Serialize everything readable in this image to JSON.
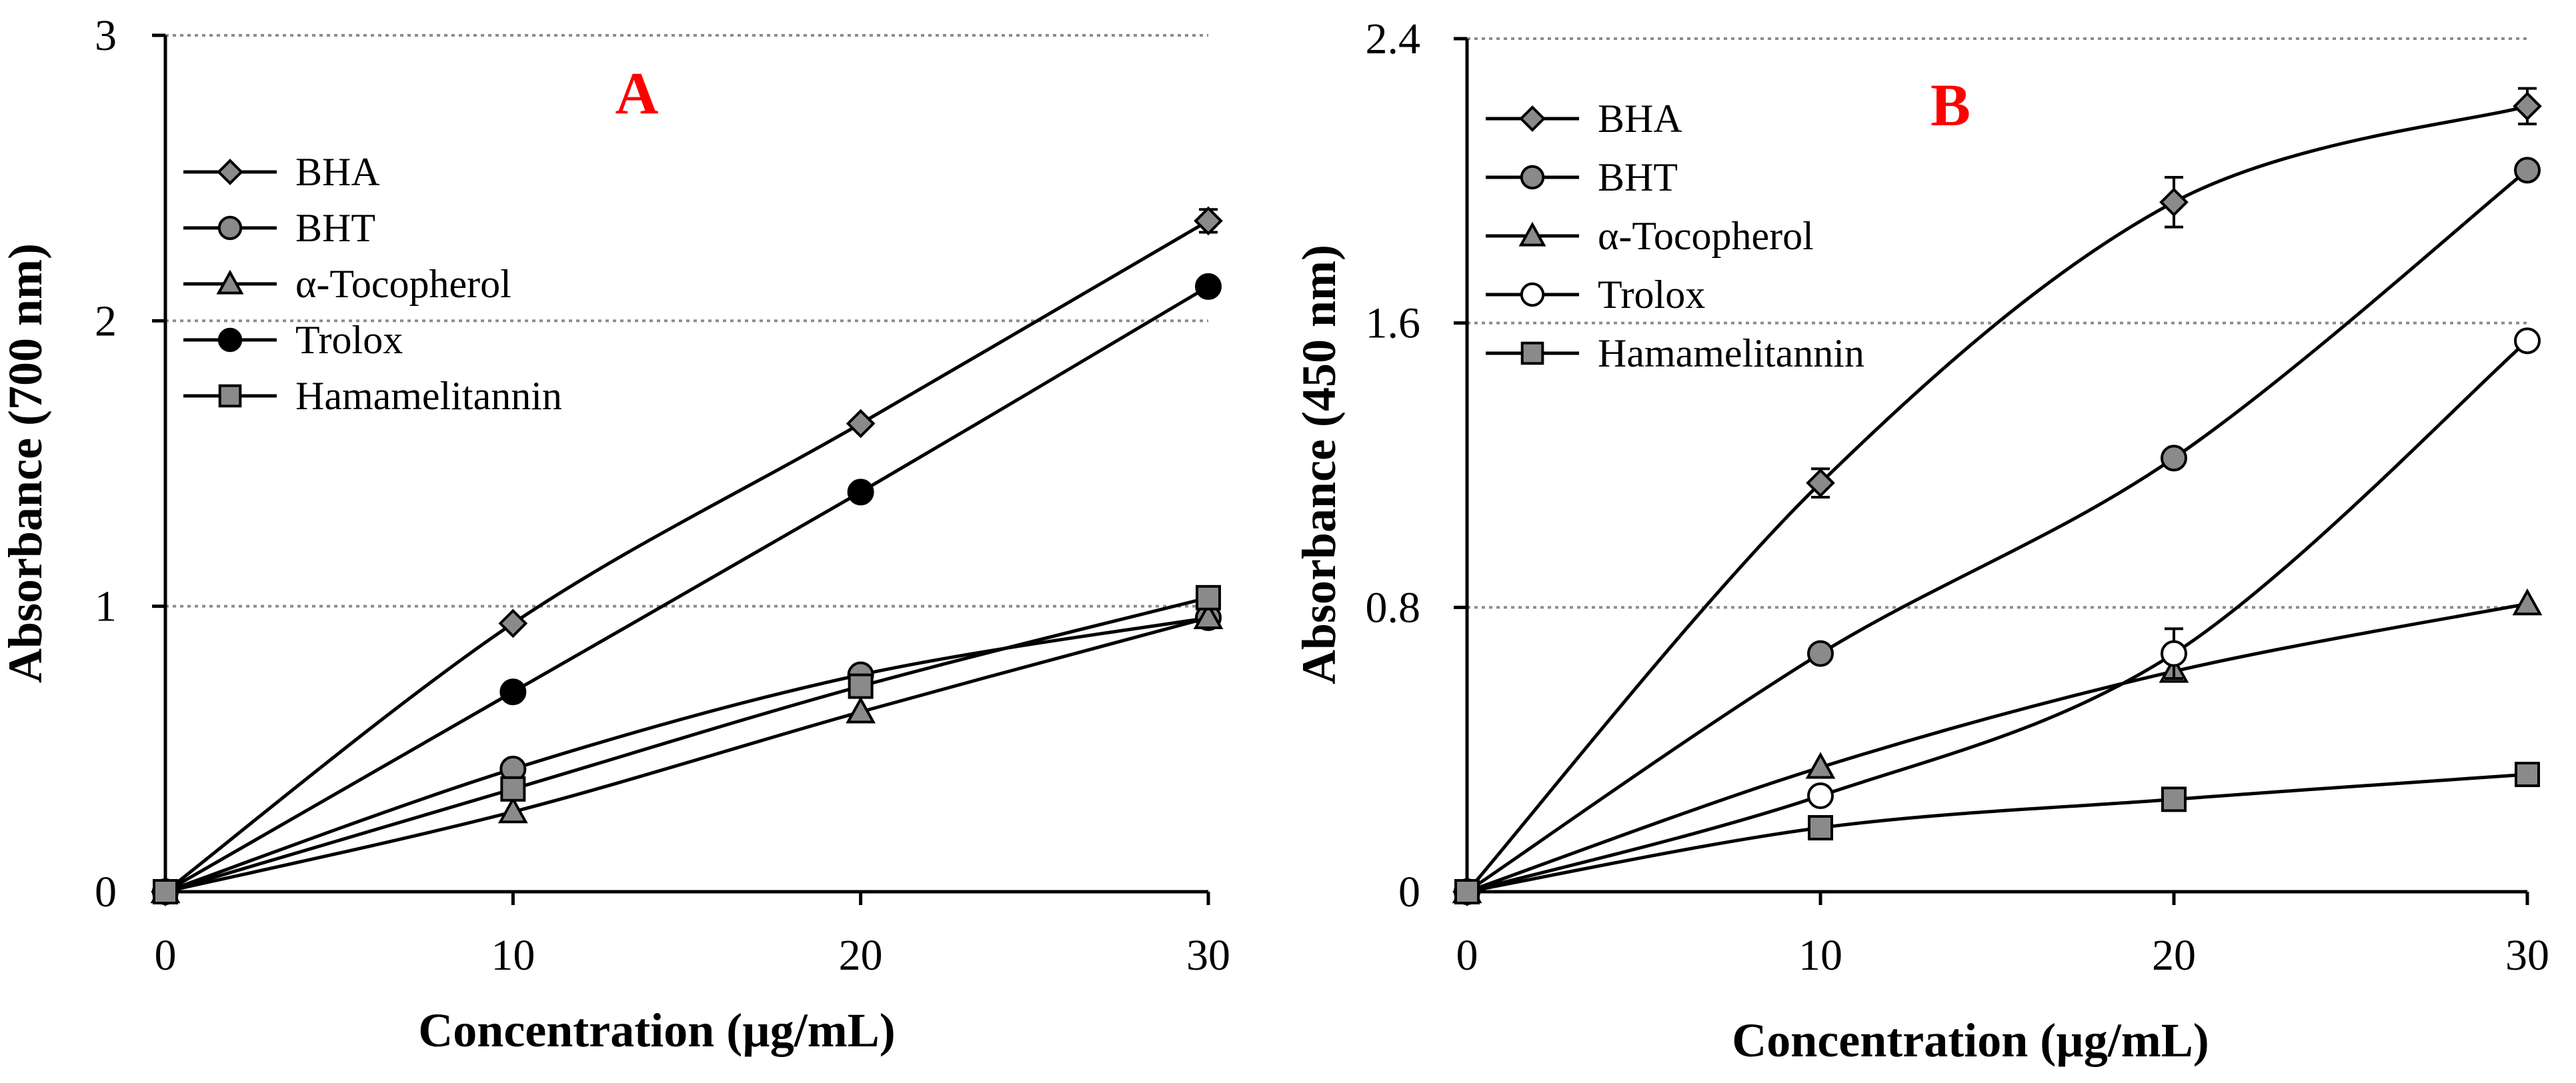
{
  "chart_data": [
    {
      "type": "line",
      "panel_label": "A",
      "xlabel": "Concentration  (µg/mL)",
      "ylabel": "Absorbance (700 nm)",
      "xlim": [
        0,
        30
      ],
      "ylim": [
        0,
        3
      ],
      "x_ticks": [
        "0",
        "10",
        "20",
        "30"
      ],
      "y_ticks": [
        "0",
        "1",
        "2",
        "3"
      ],
      "x": [
        0,
        10,
        20,
        30
      ],
      "grid": "horizontal dotted",
      "legend_position": "top-left",
      "series": [
        {
          "name": "BHA",
          "marker": "diamond",
          "fill": "#8a8a8a",
          "values": [
            0,
            0.94,
            1.64,
            2.35
          ],
          "errors": [
            0,
            0,
            0,
            0.04
          ]
        },
        {
          "name": "BHT",
          "marker": "circle",
          "fill": "#8a8a8a",
          "values": [
            0,
            0.43,
            0.76,
            0.96
          ]
        },
        {
          "name": "α-Tocopherol",
          "marker": "triangle",
          "fill": "#8a8a8a",
          "values": [
            0,
            0.28,
            0.63,
            0.96
          ]
        },
        {
          "name": "Trolox",
          "marker": "circle",
          "fill": "#000000",
          "values": [
            0,
            0.7,
            1.4,
            2.12
          ]
        },
        {
          "name": "Hamamelitannin",
          "marker": "square",
          "fill": "#8a8a8a",
          "values": [
            0,
            0.36,
            0.72,
            1.03
          ]
        }
      ]
    },
    {
      "type": "line",
      "panel_label": "B",
      "xlabel": "Concentration  (µg/mL)",
      "ylabel": "Absorbance (450 nm)",
      "xlim": [
        0,
        30
      ],
      "ylim": [
        0,
        2.4
      ],
      "x_ticks": [
        "0",
        "10",
        "20",
        "30"
      ],
      "y_ticks": [
        "0",
        "0.8",
        "1.6",
        "2.4"
      ],
      "x": [
        0,
        10,
        20,
        30
      ],
      "grid": "horizontal dotted",
      "legend_position": "top-left",
      "series": [
        {
          "name": "BHA",
          "marker": "diamond",
          "fill": "#8a8a8a",
          "values": [
            0,
            1.15,
            1.94,
            2.21
          ],
          "errors": [
            0,
            0.04,
            0.07,
            0.05
          ]
        },
        {
          "name": "BHT",
          "marker": "circle",
          "fill": "#8a8a8a",
          "values": [
            0,
            0.67,
            1.22,
            2.03
          ]
        },
        {
          "name": "α-Tocopherol",
          "marker": "triangle",
          "fill": "#8a8a8a",
          "values": [
            0,
            0.35,
            0.62,
            0.81
          ]
        },
        {
          "name": "Trolox",
          "marker": "circle",
          "fill": "#ffffff",
          "values": [
            0,
            0.27,
            0.67,
            1.55
          ],
          "errors": [
            0,
            0,
            0.07,
            0
          ]
        },
        {
          "name": "Hamamelitannin",
          "marker": "square",
          "fill": "#8a8a8a",
          "values": [
            0,
            0.18,
            0.26,
            0.33
          ]
        }
      ]
    }
  ]
}
